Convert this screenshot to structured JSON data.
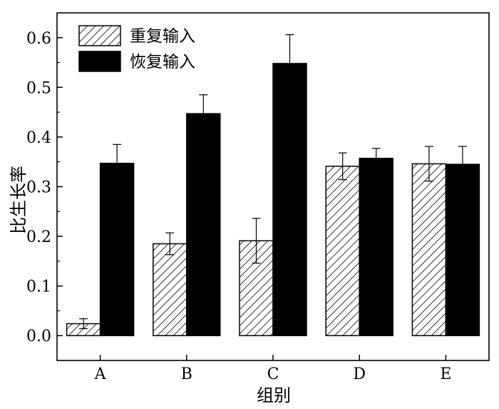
{
  "chart_data": {
    "type": "bar",
    "categories": [
      "A",
      "B",
      "C",
      "D",
      "E"
    ],
    "series": [
      {
        "name": "重复输入",
        "values": [
          0.024,
          0.185,
          0.191,
          0.341,
          0.346
        ],
        "errors": [
          0.01,
          0.022,
          0.045,
          0.027,
          0.035
        ],
        "pattern": "hatched"
      },
      {
        "name": "恢复输入",
        "values": [
          0.347,
          0.447,
          0.548,
          0.357,
          0.345
        ],
        "errors": [
          0.038,
          0.038,
          0.058,
          0.02,
          0.036
        ],
        "pattern": "solid",
        "color": "#000000"
      }
    ],
    "xlabel": "组别",
    "ylabel": "比生长率",
    "ylim": [
      -0.05,
      0.65
    ],
    "yticks": [
      "0.0",
      "0.1",
      "0.2",
      "0.3",
      "0.4",
      "0.5",
      "0.6"
    ],
    "legend_position": "top-left",
    "grid": false
  }
}
